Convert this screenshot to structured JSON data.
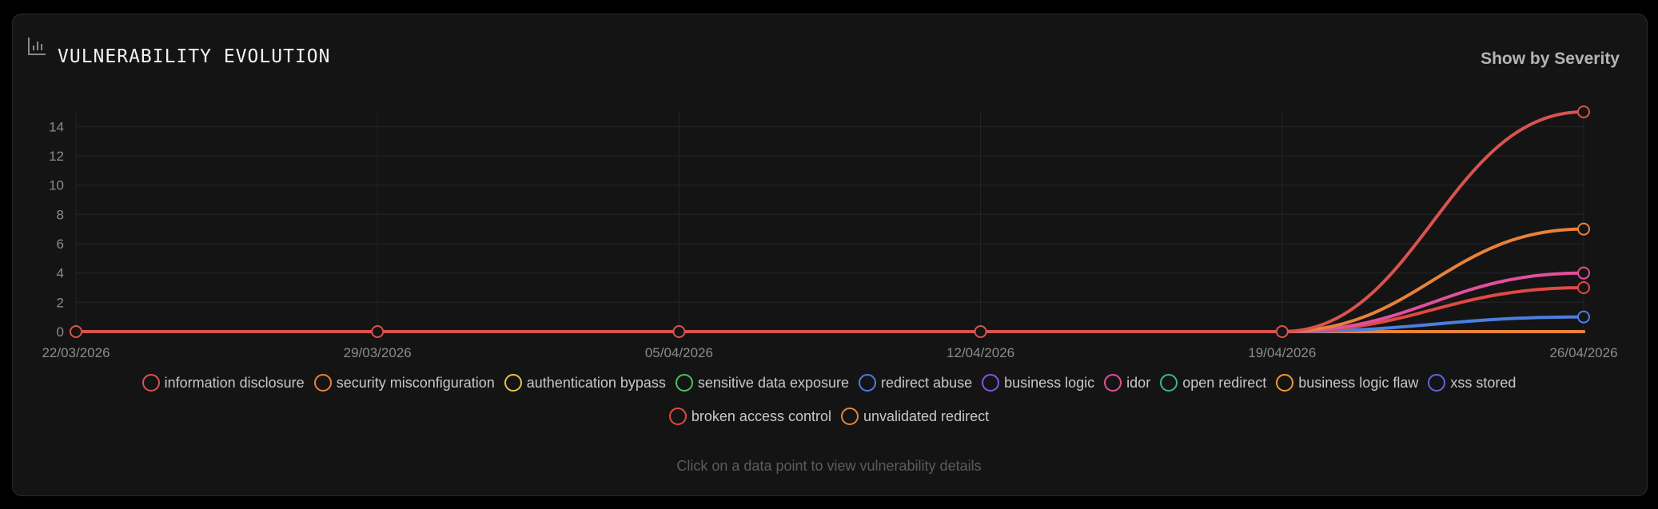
{
  "header": {
    "title": "VULNERABILITY EVOLUTION",
    "icon": "bar-chart-icon",
    "toggle_label": "Show by Severity"
  },
  "hint": "Click on a data point to view vulnerability details",
  "chart_data": {
    "type": "line",
    "x": [
      "22/03/2026",
      "29/03/2026",
      "05/04/2026",
      "12/04/2026",
      "19/04/2026",
      "26/04/2026"
    ],
    "ylim": [
      0,
      15
    ],
    "yticks": [
      0,
      2,
      4,
      6,
      8,
      10,
      12,
      14
    ],
    "grid": true,
    "legend_position": "bottom",
    "series": [
      {
        "name": "information disclosure",
        "color": "#d9534f",
        "values": [
          0,
          0,
          0,
          0,
          0,
          15
        ]
      },
      {
        "name": "security misconfiguration",
        "color": "#e8823a",
        "values": [
          0,
          0,
          0,
          0,
          0,
          7
        ]
      },
      {
        "name": "authentication bypass",
        "color": "#e3c440",
        "values": [
          0,
          0,
          0,
          0,
          0,
          0
        ]
      },
      {
        "name": "sensitive data exposure",
        "color": "#4cc063",
        "values": [
          0,
          0,
          0,
          0,
          0,
          0
        ]
      },
      {
        "name": "redirect abuse",
        "color": "#4a7fe0",
        "values": [
          0,
          0,
          0,
          0,
          0,
          1
        ]
      },
      {
        "name": "business logic",
        "color": "#8257e6",
        "values": [
          0,
          0,
          0,
          0,
          0,
          0
        ]
      },
      {
        "name": "idor",
        "color": "#e0509a",
        "values": [
          0,
          0,
          0,
          0,
          0,
          4
        ]
      },
      {
        "name": "open redirect",
        "color": "#3fb58f",
        "values": [
          0,
          0,
          0,
          0,
          0,
          0
        ]
      },
      {
        "name": "business logic flaw",
        "color": "#ef9a35",
        "values": [
          0,
          0,
          0,
          0,
          0,
          0
        ]
      },
      {
        "name": "xss stored",
        "color": "#6066dd",
        "values": [
          0,
          0,
          0,
          0,
          0,
          0
        ]
      },
      {
        "name": "broken access control",
        "color": "#e04a43",
        "values": [
          0,
          0,
          0,
          0,
          0,
          3
        ]
      },
      {
        "name": "unvalidated redirect",
        "color": "#e88438",
        "values": [
          0,
          0,
          0,
          0,
          0,
          0
        ]
      }
    ]
  }
}
